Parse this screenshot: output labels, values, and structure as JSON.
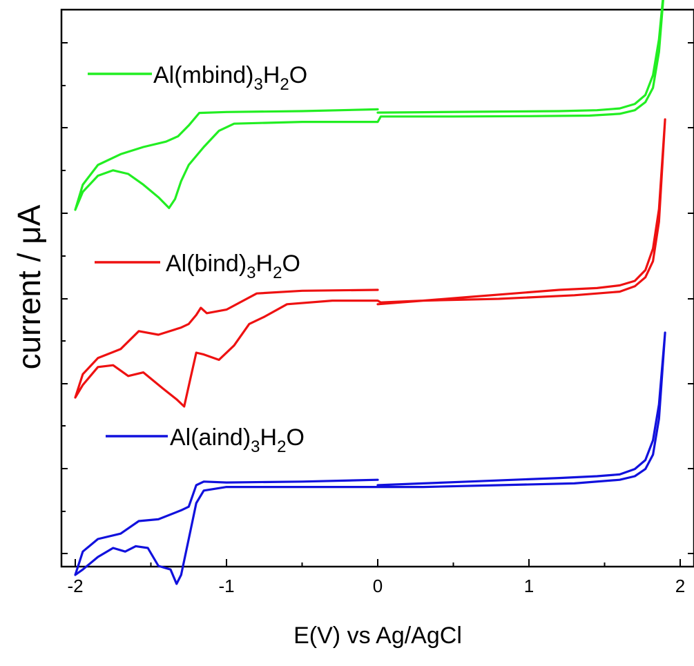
{
  "chart_data": {
    "type": "line",
    "xlabel": "E(V) vs Ag/AgCl",
    "ylabel": "current / μA",
    "xlim": [
      -2.1,
      2.1
    ],
    "xticks": [
      "-2",
      "-1",
      "0",
      "1",
      "2"
    ],
    "ytick_labels_shown": false,
    "legend_placement": "inline-left-of-each-curve",
    "series": [
      {
        "name": "Al(mbind)3H2O",
        "legend": {
          "base1": "Al(mbind)",
          "sub1": "3",
          "base2": "H",
          "sub2": "2",
          "base3": "O"
        },
        "color": "#22ee22",
        "offset": 1.0,
        "forward": [
          [
            0.0,
            0.42
          ],
          [
            0.3,
            0.44
          ],
          [
            0.6,
            0.46
          ],
          [
            0.9,
            0.48
          ],
          [
            1.2,
            0.5
          ],
          [
            1.45,
            0.55
          ],
          [
            1.6,
            0.65
          ],
          [
            1.7,
            0.9
          ],
          [
            1.77,
            1.4
          ],
          [
            1.82,
            2.5
          ],
          [
            1.86,
            4.5
          ],
          [
            1.9,
            8.0
          ]
        ],
        "reverse": [
          [
            1.9,
            8.0
          ],
          [
            1.86,
            3.8
          ],
          [
            1.82,
            1.8
          ],
          [
            1.77,
            1.0
          ],
          [
            1.7,
            0.55
          ],
          [
            1.6,
            0.35
          ],
          [
            1.4,
            0.25
          ],
          [
            1.0,
            0.22
          ],
          [
            0.5,
            0.2
          ],
          [
            0.02,
            0.2
          ],
          [
            0.0,
            -0.1
          ],
          [
            -0.5,
            -0.1
          ],
          [
            -0.95,
            -0.2
          ],
          [
            -1.05,
            -0.6
          ],
          [
            -1.15,
            -1.5
          ],
          [
            -1.25,
            -2.5
          ],
          [
            -1.3,
            -3.4
          ],
          [
            -1.34,
            -4.4
          ],
          [
            -1.38,
            -4.9
          ],
          [
            -1.45,
            -4.3
          ],
          [
            -1.55,
            -3.6
          ],
          [
            -1.65,
            -3.0
          ],
          [
            -1.75,
            -2.8
          ],
          [
            -1.85,
            -3.1
          ],
          [
            -1.95,
            -4.0
          ],
          [
            -2.0,
            -5.0
          ]
        ],
        "return": [
          [
            -2.0,
            -5.0
          ],
          [
            -1.95,
            -3.6
          ],
          [
            -1.85,
            -2.5
          ],
          [
            -1.7,
            -1.9
          ],
          [
            -1.55,
            -1.5
          ],
          [
            -1.4,
            -1.2
          ],
          [
            -1.32,
            -0.9
          ],
          [
            -1.25,
            -0.3
          ],
          [
            -1.18,
            0.4
          ],
          [
            -1.0,
            0.45
          ],
          [
            -0.5,
            0.5
          ],
          [
            0.0,
            0.6
          ]
        ]
      },
      {
        "name": "Al(bind)3H2O",
        "legend": {
          "base1": "Al(bind)",
          "sub1": "3",
          "base2": "H",
          "sub2": "2",
          "base3": "O"
        },
        "color": "#ee1111",
        "offset": 0.0,
        "forward": [
          [
            0.0,
            -0.3
          ],
          [
            0.3,
            -0.1
          ],
          [
            0.6,
            0.1
          ],
          [
            0.9,
            0.3
          ],
          [
            1.2,
            0.5
          ],
          [
            1.45,
            0.6
          ],
          [
            1.6,
            0.75
          ],
          [
            1.7,
            1.0
          ],
          [
            1.77,
            1.6
          ],
          [
            1.82,
            2.8
          ],
          [
            1.86,
            5.0
          ],
          [
            1.9,
            10.0
          ]
        ],
        "reverse": [
          [
            1.9,
            10.0
          ],
          [
            1.86,
            4.3
          ],
          [
            1.82,
            2.1
          ],
          [
            1.77,
            1.2
          ],
          [
            1.7,
            0.7
          ],
          [
            1.6,
            0.4
          ],
          [
            1.3,
            0.2
          ],
          [
            0.8,
            0.0
          ],
          [
            0.3,
            -0.1
          ],
          [
            0.02,
            -0.2
          ],
          [
            0.0,
            -0.1
          ],
          [
            -0.3,
            -0.1
          ],
          [
            -0.6,
            -0.3
          ],
          [
            -0.75,
            -1.0
          ],
          [
            -0.85,
            -1.4
          ],
          [
            -0.95,
            -2.6
          ],
          [
            -1.05,
            -3.4
          ],
          [
            -1.15,
            -3.1
          ],
          [
            -1.2,
            -3.0
          ],
          [
            -1.24,
            -4.5
          ],
          [
            -1.28,
            -6.0
          ],
          [
            -1.33,
            -5.6
          ],
          [
            -1.42,
            -5.0
          ],
          [
            -1.55,
            -4.1
          ],
          [
            -1.65,
            -4.3
          ],
          [
            -1.75,
            -3.7
          ],
          [
            -1.85,
            -3.8
          ],
          [
            -1.95,
            -4.8
          ],
          [
            -2.0,
            -5.5
          ]
        ],
        "return": [
          [
            -2.0,
            -5.5
          ],
          [
            -1.95,
            -4.2
          ],
          [
            -1.85,
            -3.3
          ],
          [
            -1.7,
            -2.8
          ],
          [
            -1.58,
            -1.8
          ],
          [
            -1.45,
            -2.0
          ],
          [
            -1.3,
            -1.6
          ],
          [
            -1.25,
            -1.4
          ],
          [
            -1.2,
            -0.9
          ],
          [
            -1.17,
            -0.5
          ],
          [
            -1.13,
            -0.8
          ],
          [
            -1.0,
            -0.6
          ],
          [
            -0.8,
            0.3
          ],
          [
            -0.5,
            0.45
          ],
          [
            0.0,
            0.5
          ]
        ]
      },
      {
        "name": "Al(aind)3H2O",
        "legend": {
          "base1": "Al(aind)",
          "sub1": "3",
          "base2": "H",
          "sub2": "2",
          "base3": "O"
        },
        "color": "#1111dd",
        "offset": -1.0,
        "forward": [
          [
            0.0,
            -0.5
          ],
          [
            0.3,
            -0.4
          ],
          [
            0.6,
            -0.3
          ],
          [
            0.9,
            -0.2
          ],
          [
            1.2,
            -0.1
          ],
          [
            1.45,
            0.0
          ],
          [
            1.6,
            0.1
          ],
          [
            1.7,
            0.4
          ],
          [
            1.77,
            0.9
          ],
          [
            1.82,
            2.0
          ],
          [
            1.86,
            4.0
          ],
          [
            1.9,
            8.0
          ]
        ],
        "reverse": [
          [
            1.9,
            8.0
          ],
          [
            1.86,
            3.2
          ],
          [
            1.82,
            1.2
          ],
          [
            1.77,
            0.4
          ],
          [
            1.7,
            0.0
          ],
          [
            1.6,
            -0.2
          ],
          [
            1.3,
            -0.4
          ],
          [
            0.8,
            -0.5
          ],
          [
            0.3,
            -0.6
          ],
          [
            0.02,
            -0.6
          ],
          [
            0.0,
            -0.6
          ],
          [
            -0.5,
            -0.6
          ],
          [
            -1.0,
            -0.6
          ],
          [
            -1.15,
            -0.8
          ],
          [
            -1.2,
            -1.5
          ],
          [
            -1.25,
            -3.5
          ],
          [
            -1.3,
            -5.5
          ],
          [
            -1.33,
            -6.0
          ],
          [
            -1.37,
            -5.2
          ],
          [
            -1.45,
            -5.0
          ],
          [
            -1.52,
            -4.0
          ],
          [
            -1.6,
            -3.9
          ],
          [
            -1.67,
            -4.2
          ],
          [
            -1.75,
            -4.0
          ],
          [
            -1.85,
            -4.5
          ],
          [
            -1.95,
            -5.2
          ],
          [
            -2.0,
            -5.5
          ]
        ],
        "return": [
          [
            -2.0,
            -5.5
          ],
          [
            -1.95,
            -4.2
          ],
          [
            -1.85,
            -3.5
          ],
          [
            -1.7,
            -3.2
          ],
          [
            -1.58,
            -2.5
          ],
          [
            -1.45,
            -2.4
          ],
          [
            -1.3,
            -1.9
          ],
          [
            -1.25,
            -1.7
          ],
          [
            -1.2,
            -0.5
          ],
          [
            -1.15,
            -0.3
          ],
          [
            -1.0,
            -0.35
          ],
          [
            -0.5,
            -0.3
          ],
          [
            0.0,
            -0.2
          ]
        ]
      }
    ]
  }
}
